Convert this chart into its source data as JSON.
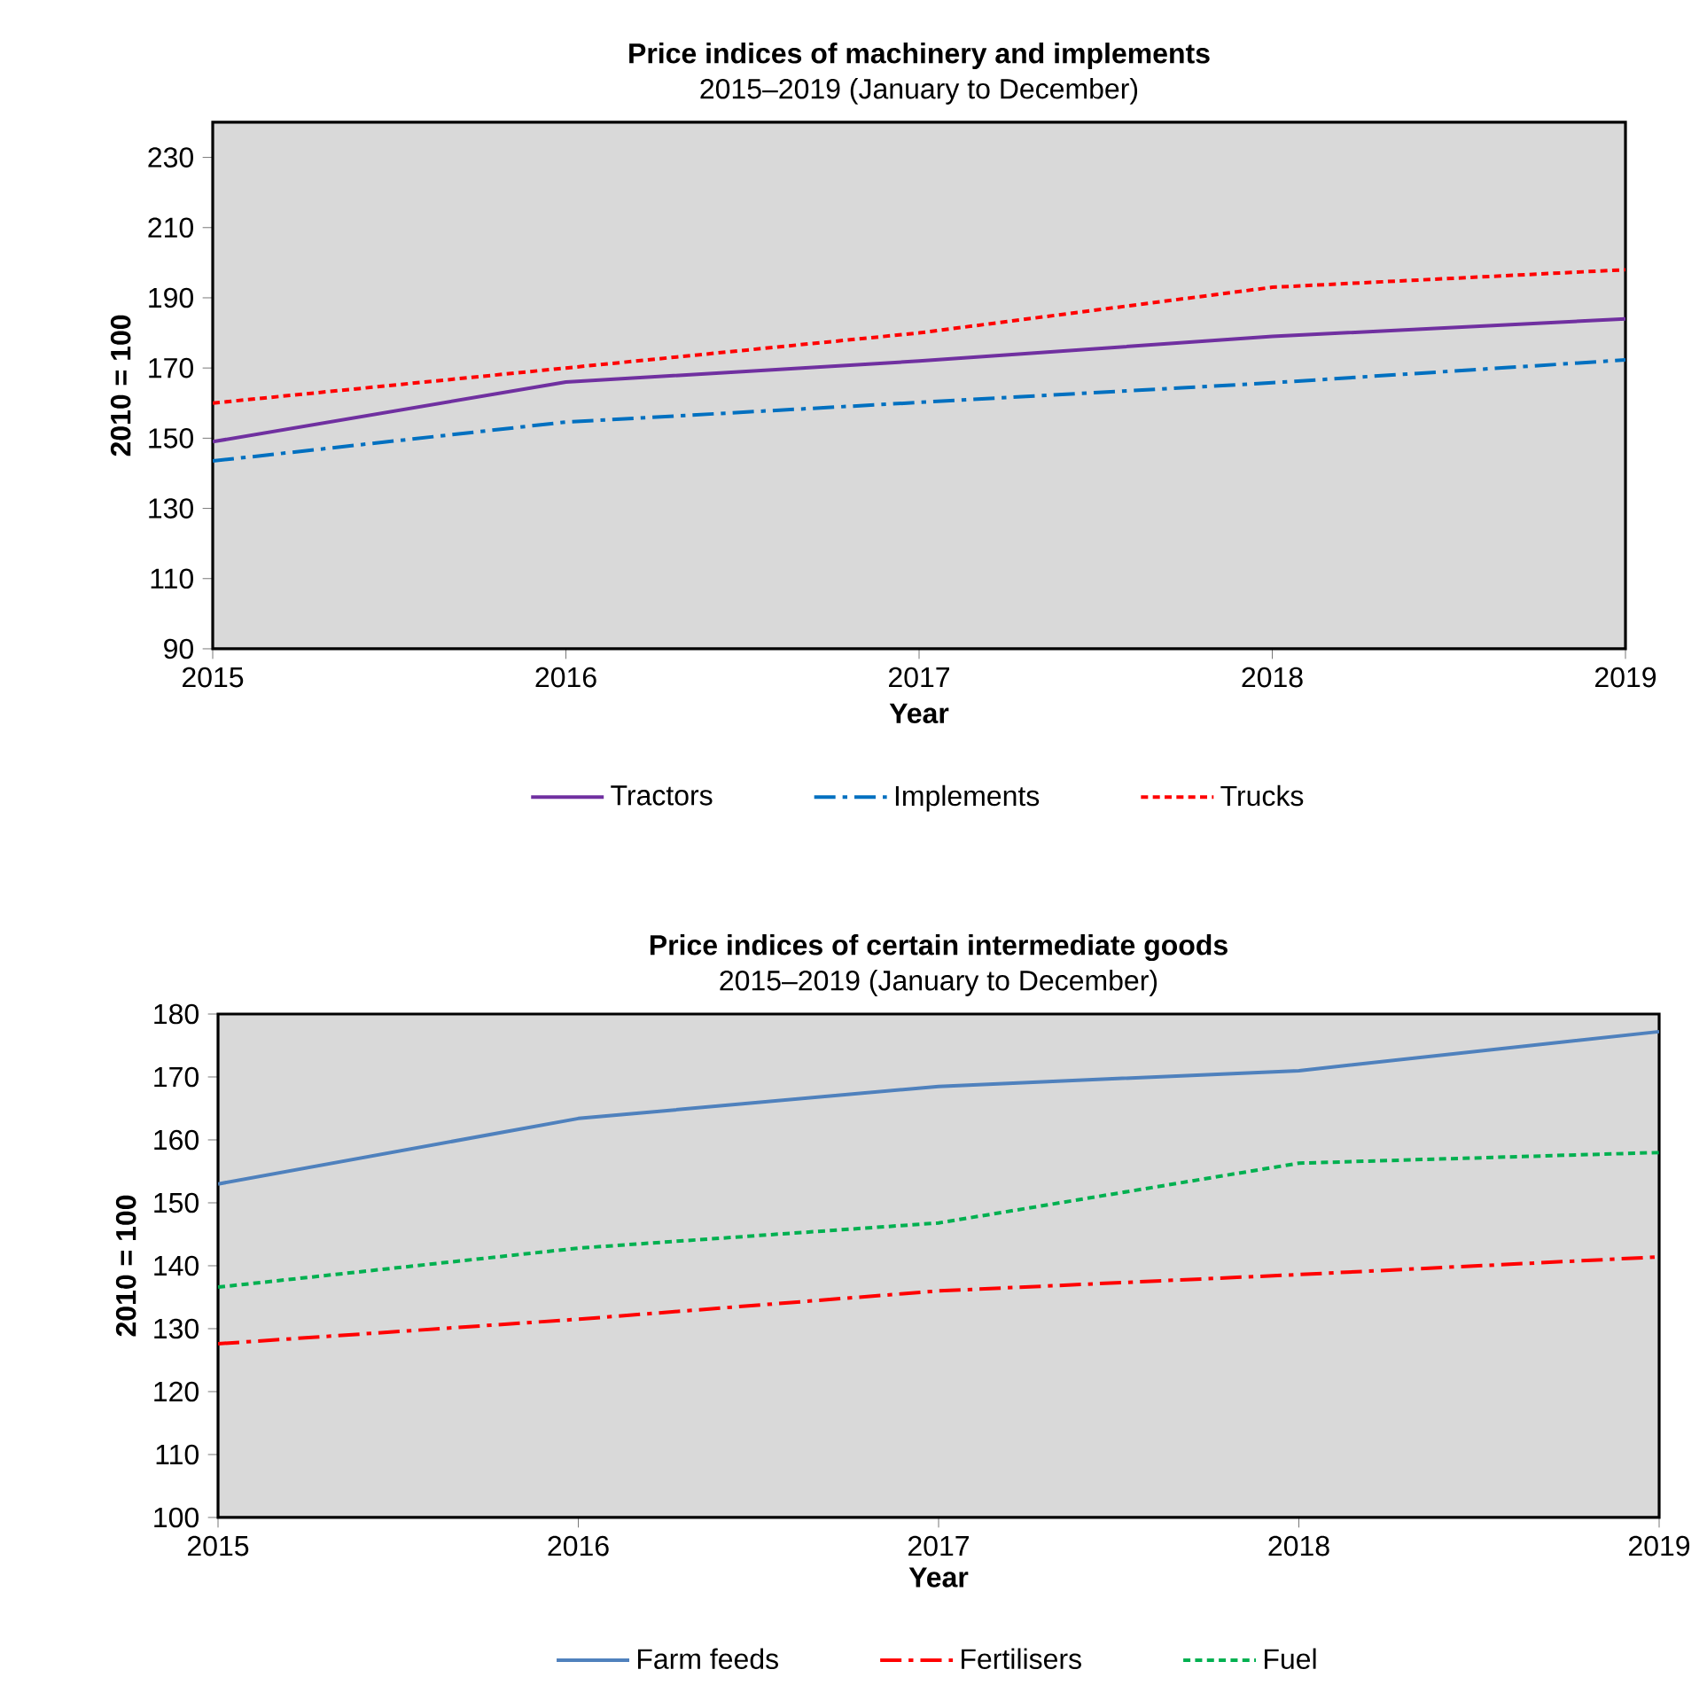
{
  "chart_data": [
    {
      "type": "line",
      "title": "Price indices of machinery and implements",
      "subtitle": "2015–2019 (January to December)",
      "xlabel": "Year",
      "ylabel": "2010 = 100",
      "x": [
        2015,
        2016,
        2017,
        2018,
        2019
      ],
      "xlim": [
        2015,
        2019
      ],
      "xticks": [
        2015,
        2016,
        2017,
        2018,
        2019
      ],
      "ylim": [
        90,
        240
      ],
      "yticks": [
        90,
        110,
        130,
        150,
        170,
        190,
        210,
        230
      ],
      "legend": "bottom",
      "grid": false,
      "marker": "none",
      "series": [
        {
          "name": "Tractors",
          "color": "#7030a0",
          "line_style": "solid",
          "values": [
            149,
            166,
            172,
            179,
            184
          ]
        },
        {
          "name": "Implements",
          "color": "#0070c0",
          "line_style": "dashdot",
          "values": [
            143.5,
            154.6,
            160.2,
            165.8,
            172.3
          ]
        },
        {
          "name": "Trucks",
          "color": "#ff0000",
          "line_style": "dashed",
          "values": [
            160,
            170,
            180,
            193,
            198
          ]
        }
      ]
    },
    {
      "type": "line",
      "title": "Price indices of certain intermediate goods",
      "subtitle": "2015–2019 (January to December)",
      "xlabel": "Year",
      "ylabel": "2010 = 100",
      "x": [
        2015,
        2016,
        2017,
        2018,
        2019
      ],
      "xlim": [
        2015,
        2019
      ],
      "xticks": [
        2015,
        2016,
        2017,
        2018,
        2019
      ],
      "ylim": [
        100,
        180
      ],
      "yticks": [
        100,
        110,
        120,
        130,
        140,
        150,
        160,
        170,
        180
      ],
      "legend": "bottom",
      "grid": false,
      "marker": "none",
      "series": [
        {
          "name": "Farm feeds",
          "color": "#4f81bd",
          "line_style": "solid",
          "values": [
            153,
            163.4,
            168.5,
            171,
            177.2
          ]
        },
        {
          "name": "Fertilisers",
          "color": "#ff0000",
          "line_style": "dashdot",
          "values": [
            127.6,
            131.5,
            136,
            138.6,
            141.4
          ]
        },
        {
          "name": "Fuel",
          "color": "#00b050",
          "line_style": "dashed",
          "values": [
            136.6,
            142.8,
            146.8,
            156.3,
            158
          ]
        }
      ]
    }
  ]
}
